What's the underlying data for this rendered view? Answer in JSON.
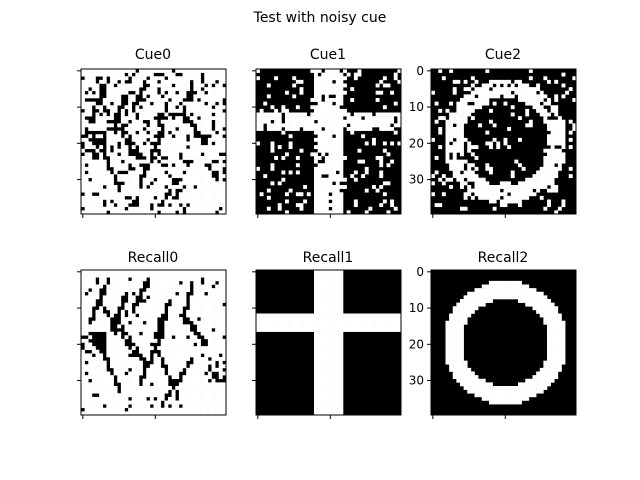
{
  "figure": {
    "title": "Test with noisy cue"
  },
  "chart_data": [
    {
      "type": "heatmap",
      "title": "Cue0",
      "colormap": "binary",
      "pattern": "noisy-texture",
      "rows": 40,
      "cols": 40,
      "xlim": [
        0,
        39
      ],
      "ylim": [
        39,
        0
      ],
      "xticks": [
        0,
        20
      ],
      "yticks": [
        0,
        10,
        20,
        30
      ],
      "show_xtick_labels": false,
      "show_ytick_labels": false
    },
    {
      "type": "heatmap",
      "title": "Cue1",
      "colormap": "binary",
      "pattern": "noisy-cross",
      "rows": 40,
      "cols": 40,
      "xlim": [
        0,
        39
      ],
      "ylim": [
        39,
        0
      ],
      "xticks": [
        0,
        20
      ],
      "yticks": [
        0,
        10,
        20,
        30
      ],
      "show_xtick_labels": false,
      "show_ytick_labels": false
    },
    {
      "type": "heatmap",
      "title": "Cue2",
      "colormap": "binary",
      "pattern": "noisy-ring",
      "rows": 40,
      "cols": 40,
      "xlim": [
        0,
        39
      ],
      "ylim": [
        39,
        0
      ],
      "xticks": [
        0,
        20
      ],
      "yticks": [
        0,
        10,
        20,
        30
      ],
      "ytick_labels": [
        "0",
        "10",
        "20",
        "30"
      ],
      "show_xtick_labels": false,
      "show_ytick_labels": true
    },
    {
      "type": "heatmap",
      "title": "Recall0",
      "colormap": "binary",
      "pattern": "texture",
      "rows": 40,
      "cols": 40,
      "xlim": [
        0,
        39
      ],
      "ylim": [
        39,
        0
      ],
      "xticks": [
        0,
        20
      ],
      "yticks": [
        0,
        10,
        20,
        30
      ],
      "show_xtick_labels": false,
      "show_ytick_labels": false
    },
    {
      "type": "heatmap",
      "title": "Recall1",
      "colormap": "binary",
      "pattern": "cross",
      "rows": 40,
      "cols": 40,
      "xlim": [
        0,
        39
      ],
      "ylim": [
        39,
        0
      ],
      "xticks": [
        0,
        20
      ],
      "yticks": [
        0,
        10,
        20,
        30
      ],
      "show_xtick_labels": false,
      "show_ytick_labels": false
    },
    {
      "type": "heatmap",
      "title": "Recall2",
      "colormap": "binary",
      "pattern": "ring",
      "rows": 40,
      "cols": 40,
      "xlim": [
        0,
        39
      ],
      "ylim": [
        39,
        0
      ],
      "xticks": [
        0,
        20
      ],
      "yticks": [
        0,
        10,
        20,
        30
      ],
      "ytick_labels": [
        "0",
        "10",
        "20",
        "30"
      ],
      "show_xtick_labels": false,
      "show_ytick_labels": true
    }
  ],
  "colors": {
    "on": "#ffffff",
    "off": "#000000",
    "axis": "#000000"
  }
}
